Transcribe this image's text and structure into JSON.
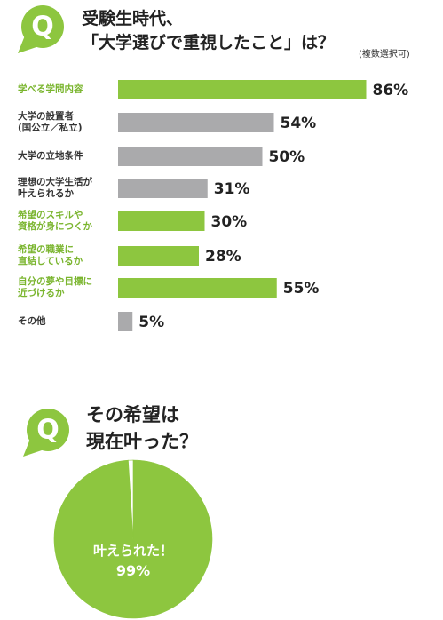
{
  "chart_data": [
    {
      "type": "barh",
      "badge": "Q",
      "title": "受験生時代、\n「大学選びで重視したこと」は？",
      "subtitle": "(複数選択可)",
      "categories": [
        "学べる学問内容",
        "大学の設置者\n(国公立／私立)",
        "大学の立地条件",
        "理想の大学生活が\n叶えられるか",
        "希望のスキルや\n資格が身につくか",
        "希望の職業に\n直結しているか",
        "自分の夢や目標に\n近づけるか",
        "その他"
      ],
      "values": [
        86,
        54,
        50,
        31,
        30,
        28,
        55,
        5
      ],
      "value_labels": [
        "86%",
        "54%",
        "50%",
        "31%",
        "30%",
        "28%",
        "55%",
        "5%"
      ],
      "colors": [
        "#8dc63f",
        "#aaaaac",
        "#aaaaac",
        "#aaaaac",
        "#8dc63f",
        "#8dc63f",
        "#8dc63f",
        "#aaaaac"
      ],
      "label_colors": [
        "#7ab52e",
        "#333333",
        "#333333",
        "#333333",
        "#7ab52e",
        "#7ab52e",
        "#7ab52e",
        "#333333"
      ]
    },
    {
      "type": "pie",
      "badge": "Q",
      "title": "その希望は\n現在叶った？",
      "categories": [
        "叶えられた！",
        null
      ],
      "values": [
        99,
        1
      ],
      "value_labels": [
        "99%",
        null
      ],
      "colors": [
        "#8dc63f",
        "#ffffff"
      ]
    }
  ]
}
